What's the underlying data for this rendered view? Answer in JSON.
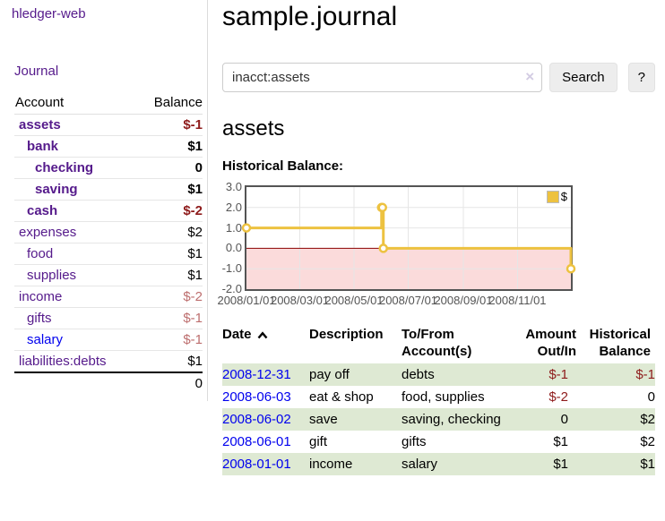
{
  "sidebar": {
    "app_title": "hledger-web",
    "journal_link": "Journal",
    "accounts": {
      "header_account": "Account",
      "header_balance": "Balance",
      "rows": [
        {
          "name": "assets",
          "indent": 1,
          "bold": true,
          "balance": "$-1",
          "neg": "strong"
        },
        {
          "name": "bank",
          "indent": 2,
          "bold": true,
          "balance": "$1",
          "neg": null
        },
        {
          "name": "checking",
          "indent": 3,
          "bold": true,
          "balance": "0",
          "neg": null
        },
        {
          "name": "saving",
          "indent": 3,
          "bold": true,
          "balance": "$1",
          "neg": null
        },
        {
          "name": "cash",
          "indent": 2,
          "bold": true,
          "balance": "$-2",
          "neg": "strong"
        },
        {
          "name": "expenses",
          "indent": 1,
          "bold": false,
          "balance": "$2",
          "neg": null
        },
        {
          "name": "food",
          "indent": 2,
          "bold": false,
          "balance": "$1",
          "neg": null
        },
        {
          "name": "supplies",
          "indent": 2,
          "bold": false,
          "balance": "$1",
          "neg": null
        },
        {
          "name": "income",
          "indent": 1,
          "bold": false,
          "balance": "$-2",
          "neg": "soft"
        },
        {
          "name": "gifts",
          "indent": 2,
          "bold": false,
          "balance": "$-1",
          "neg": "soft"
        },
        {
          "name": "salary",
          "indent": 2,
          "bold": false,
          "balance": "$-1",
          "neg": "soft",
          "link": "blue"
        },
        {
          "name": "liabilities:debts",
          "indent": 1,
          "bold": false,
          "balance": "$1",
          "neg": null
        }
      ],
      "total": "0"
    }
  },
  "main": {
    "title": "sample.journal",
    "search": {
      "value": "inacct:assets",
      "clear_icon": "×",
      "button_label": "Search",
      "help_label": "?"
    },
    "account_heading": "assets",
    "register": {
      "headers": {
        "date": "Date",
        "description": "Description",
        "accounts": "To/From Account(s)",
        "amount": "Amount Out/In",
        "balance": "Historical Balance"
      },
      "rows": [
        {
          "date": "2008-12-31",
          "description": "pay off",
          "accounts": "debts",
          "amount": "$-1",
          "amount_neg": true,
          "balance": "$-1",
          "balance_neg": true,
          "shaded": true
        },
        {
          "date": "2008-06-03",
          "description": "eat & shop",
          "accounts": "food, supplies",
          "amount": "$-2",
          "amount_neg": true,
          "balance": "0",
          "balance_neg": false,
          "shaded": false
        },
        {
          "date": "2008-06-02",
          "description": "save",
          "accounts": "saving, checking",
          "amount": "0",
          "amount_neg": false,
          "balance": "$2",
          "balance_neg": false,
          "shaded": true
        },
        {
          "date": "2008-06-01",
          "description": "gift",
          "accounts": "gifts",
          "amount": "$1",
          "amount_neg": false,
          "balance": "$2",
          "balance_neg": false,
          "shaded": false
        },
        {
          "date": "2008-01-01",
          "description": "income",
          "accounts": "salary",
          "amount": "$1",
          "amount_neg": false,
          "balance": "$1",
          "balance_neg": false,
          "shaded": true
        }
      ]
    }
  },
  "chart_data": {
    "type": "line",
    "title": "Historical Balance:",
    "style": "step-after",
    "series": [
      {
        "name": "$",
        "color": "#edc240",
        "points": [
          {
            "date": "2008-01-01",
            "value": 1
          },
          {
            "date": "2008-06-01",
            "value": 2
          },
          {
            "date": "2008-06-02",
            "value": 2
          },
          {
            "date": "2008-06-03",
            "value": 0
          },
          {
            "date": "2008-12-31",
            "value": -1
          }
        ]
      }
    ],
    "x_ticks": [
      "2008/01/01",
      "2008/03/01",
      "2008/05/01",
      "2008/07/01",
      "2008/09/01",
      "2008/11/01"
    ],
    "y_ticks": [
      3.0,
      2.0,
      1.0,
      0.0,
      -1.0,
      -2.0
    ],
    "xlim": [
      "2008-01-01",
      "2008-12-31"
    ],
    "ylim": [
      -2,
      3
    ],
    "grid": true,
    "legend_position": "top-right",
    "negative_region_color": "#fbdbdb",
    "zero_line_color": "#8b0000"
  },
  "colors": {
    "visited_link_purple": "#551a8b",
    "unvisited_link_blue": "#0000ee",
    "negative_strong": "#8e1b1b",
    "negative_soft": "#bd6e6e",
    "row_shade_green": "#dee9d3",
    "chart_line_gold": "#edc240",
    "chart_border_gray": "#545454",
    "chart_negative_region": "#fbdbdb",
    "chart_zero_line": "#8b0000"
  }
}
